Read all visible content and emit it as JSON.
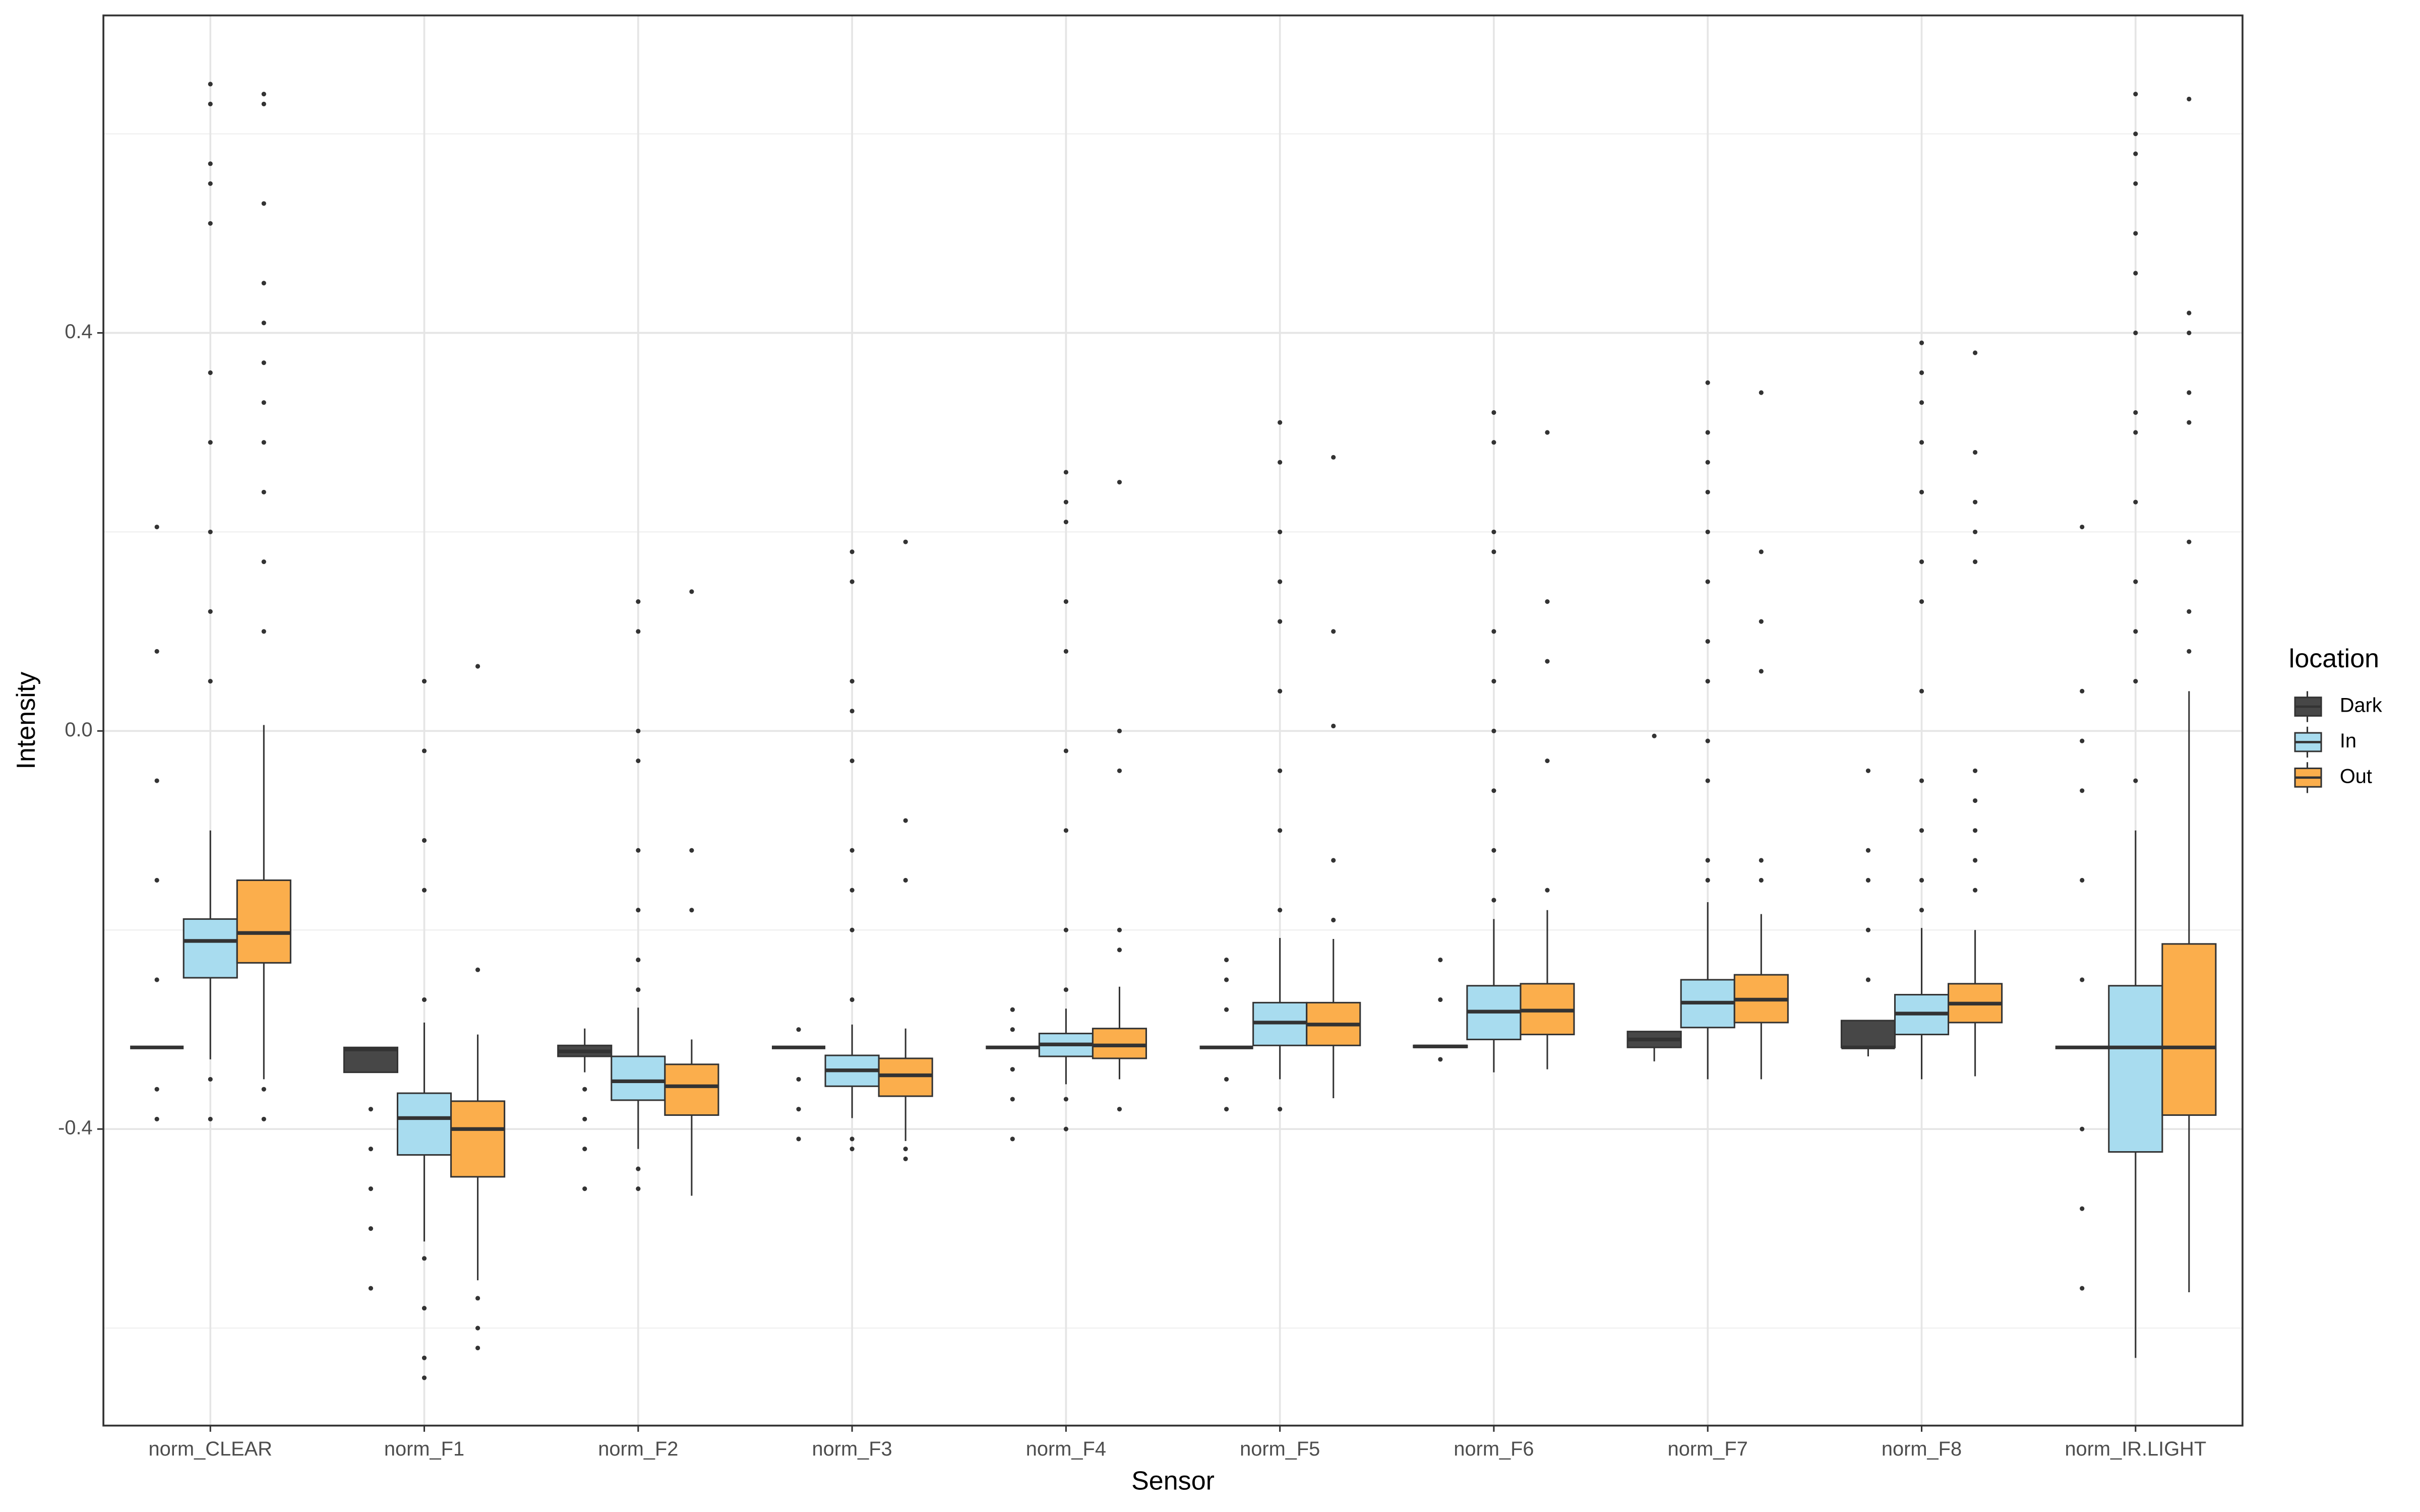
{
  "chart_data": {
    "type": "boxplot",
    "x_label": "Sensor",
    "y_label": "Intensity",
    "legend_title": "location",
    "legend_position": "right",
    "grid": true,
    "categories": [
      "norm_CLEAR",
      "norm_F1",
      "norm_F2",
      "norm_F3",
      "norm_F4",
      "norm_F5",
      "norm_F6",
      "norm_F7",
      "norm_F8",
      "norm_IR.LIGHT"
    ],
    "ylim": [
      -0.698,
      0.719
    ],
    "yticks": [
      {
        "value": -0.4,
        "label": "-0.4"
      },
      {
        "value": 0,
        "label": "0.0"
      },
      0.4
    ],
    "minor_yticks": [
      -0.6,
      -0.2,
      0.2,
      0.6
    ],
    "series": [
      {
        "name": "Dark",
        "color": "#474747",
        "boxes": [
          {
            "low": -0.318,
            "q1": -0.318,
            "median": -0.318,
            "q3": -0.318,
            "high": -0.318,
            "outliers": [
              0.205,
              0.08,
              -0.05,
              -0.15,
              -0.25,
              -0.36,
              -0.39
            ]
          },
          {
            "low": -0.343,
            "q1": -0.343,
            "median": -0.32,
            "q3": -0.318,
            "high": -0.318,
            "outliers": [
              -0.38,
              -0.42,
              -0.46,
              -0.5,
              -0.56
            ]
          },
          {
            "low": -0.343,
            "q1": -0.327,
            "median": -0.322,
            "q3": -0.316,
            "high": -0.299,
            "outliers": [
              -0.36,
              -0.39,
              -0.42,
              -0.46
            ]
          },
          {
            "low": -0.318,
            "q1": -0.318,
            "median": -0.318,
            "q3": -0.318,
            "high": -0.318,
            "outliers": [
              -0.3,
              -0.35,
              -0.38,
              -0.41
            ]
          },
          {
            "low": -0.318,
            "q1": -0.318,
            "median": -0.318,
            "q3": -0.318,
            "high": -0.318,
            "outliers": [
              -0.28,
              -0.3,
              -0.34,
              -0.37,
              -0.41
            ]
          },
          {
            "low": -0.318,
            "q1": -0.318,
            "median": -0.318,
            "q3": -0.318,
            "high": -0.318,
            "outliers": [
              -0.23,
              -0.25,
              -0.28,
              -0.35,
              -0.38
            ]
          },
          {
            "low": -0.318,
            "q1": -0.318,
            "median": -0.317,
            "q3": -0.316,
            "high": -0.316,
            "outliers": [
              -0.23,
              -0.27,
              -0.33
            ]
          },
          {
            "low": -0.332,
            "q1": -0.318,
            "median": -0.31,
            "q3": -0.302,
            "high": -0.302,
            "outliers": [
              -0.005
            ]
          },
          {
            "low": -0.327,
            "q1": -0.318,
            "median": -0.318,
            "q3": -0.291,
            "high": -0.291,
            "outliers": [
              -0.04,
              -0.12,
              -0.15,
              -0.2,
              -0.25
            ]
          },
          {
            "low": -0.318,
            "q1": -0.318,
            "median": -0.318,
            "q3": -0.318,
            "high": -0.318,
            "outliers": [
              0.205,
              0.04,
              -0.01,
              -0.06,
              -0.15,
              -0.25,
              -0.4,
              -0.48,
              -0.56
            ]
          }
        ]
      },
      {
        "name": "In",
        "color": "#a8dcef",
        "boxes": [
          {
            "low": -0.33,
            "q1": -0.248,
            "median": -0.211,
            "q3": -0.189,
            "high": -0.1,
            "outliers": [
              0.65,
              0.63,
              0.57,
              0.55,
              0.51,
              0.36,
              0.29,
              0.2,
              0.12,
              0.05,
              -0.35,
              -0.39
            ]
          },
          {
            "low": -0.513,
            "q1": -0.426,
            "median": -0.389,
            "q3": -0.364,
            "high": -0.293,
            "outliers": [
              0.05,
              -0.02,
              -0.11,
              -0.16,
              -0.27,
              -0.53,
              -0.58,
              -0.63,
              -0.65
            ]
          },
          {
            "low": -0.42,
            "q1": -0.371,
            "median": -0.352,
            "q3": -0.327,
            "high": -0.278,
            "outliers": [
              0.13,
              0.1,
              0.0,
              -0.03,
              -0.12,
              -0.18,
              -0.23,
              -0.26,
              -0.44,
              -0.46
            ]
          },
          {
            "low": -0.389,
            "q1": -0.357,
            "median": -0.341,
            "q3": -0.326,
            "high": -0.295,
            "outliers": [
              0.18,
              0.15,
              0.05,
              0.02,
              -0.03,
              -0.12,
              -0.16,
              -0.2,
              -0.27,
              -0.41,
              -0.42
            ]
          },
          {
            "low": -0.355,
            "q1": -0.327,
            "median": -0.315,
            "q3": -0.304,
            "high": -0.279,
            "outliers": [
              0.26,
              0.23,
              0.21,
              0.13,
              0.08,
              -0.02,
              -0.1,
              -0.2,
              -0.26,
              -0.37,
              -0.4
            ]
          },
          {
            "low": -0.35,
            "q1": -0.316,
            "median": -0.293,
            "q3": -0.273,
            "high": -0.208,
            "outliers": [
              0.31,
              0.27,
              0.2,
              0.15,
              0.11,
              0.04,
              -0.04,
              -0.1,
              -0.18,
              -0.38
            ]
          },
          {
            "low": -0.343,
            "q1": -0.31,
            "median": -0.282,
            "q3": -0.256,
            "high": -0.189,
            "outliers": [
              0.32,
              0.29,
              0.2,
              0.18,
              0.1,
              0.05,
              0.0,
              -0.06,
              -0.12,
              -0.17
            ]
          },
          {
            "low": -0.35,
            "q1": -0.298,
            "median": -0.273,
            "q3": -0.25,
            "high": -0.172,
            "outliers": [
              0.35,
              0.3,
              0.27,
              0.24,
              0.2,
              0.15,
              0.09,
              0.05,
              -0.01,
              -0.05,
              -0.13,
              -0.15
            ]
          },
          {
            "low": -0.35,
            "q1": -0.305,
            "median": -0.284,
            "q3": -0.265,
            "high": -0.198,
            "outliers": [
              0.39,
              0.36,
              0.33,
              0.29,
              0.24,
              0.17,
              0.13,
              0.04,
              -0.05,
              -0.1,
              -0.15,
              -0.18
            ]
          },
          {
            "low": -0.63,
            "q1": -0.423,
            "median": -0.318,
            "q3": -0.256,
            "high": -0.1,
            "outliers": [
              0.64,
              0.6,
              0.58,
              0.55,
              0.5,
              0.46,
              0.4,
              0.32,
              0.3,
              0.23,
              0.15,
              0.1,
              0.05,
              -0.05
            ]
          }
        ]
      },
      {
        "name": "Out",
        "color": "#fbae4c",
        "boxes": [
          {
            "low": -0.35,
            "q1": -0.233,
            "median": -0.203,
            "q3": -0.15,
            "high": 0.006,
            "outliers": [
              0.64,
              0.63,
              0.53,
              0.45,
              0.41,
              0.37,
              0.33,
              0.29,
              0.24,
              0.17,
              0.1,
              -0.36,
              -0.39
            ]
          },
          {
            "low": -0.552,
            "q1": -0.448,
            "median": -0.4,
            "q3": -0.372,
            "high": -0.305,
            "outliers": [
              0.065,
              -0.24,
              -0.57,
              -0.6,
              -0.62
            ]
          },
          {
            "low": -0.467,
            "q1": -0.386,
            "median": -0.357,
            "q3": -0.335,
            "high": -0.31,
            "outliers": [
              0.14,
              -0.12,
              -0.18
            ]
          },
          {
            "low": -0.412,
            "q1": -0.367,
            "median": -0.346,
            "q3": -0.329,
            "high": -0.299,
            "outliers": [
              0.19,
              -0.09,
              -0.15,
              -0.42,
              -0.43
            ]
          },
          {
            "low": -0.35,
            "q1": -0.329,
            "median": -0.316,
            "q3": -0.299,
            "high": -0.257,
            "outliers": [
              0.25,
              0.0,
              -0.04,
              -0.2,
              -0.22,
              -0.38
            ]
          },
          {
            "low": -0.369,
            "q1": -0.316,
            "median": -0.295,
            "q3": -0.273,
            "high": -0.209,
            "outliers": [
              0.275,
              0.1,
              0.005,
              -0.13,
              -0.19
            ]
          },
          {
            "low": -0.34,
            "q1": -0.305,
            "median": -0.281,
            "q3": -0.254,
            "high": -0.18,
            "outliers": [
              0.3,
              0.13,
              0.07,
              -0.03,
              -0.16
            ]
          },
          {
            "low": -0.35,
            "q1": -0.293,
            "median": -0.27,
            "q3": -0.245,
            "high": -0.184,
            "outliers": [
              0.34,
              0.18,
              0.11,
              0.06,
              -0.13,
              -0.15
            ]
          },
          {
            "low": -0.347,
            "q1": -0.293,
            "median": -0.274,
            "q3": -0.254,
            "high": -0.2,
            "outliers": [
              0.38,
              0.28,
              0.23,
              0.2,
              0.17,
              -0.04,
              -0.07,
              -0.1,
              -0.13,
              -0.16
            ]
          },
          {
            "low": -0.564,
            "q1": -0.386,
            "median": -0.318,
            "q3": -0.214,
            "high": 0.04,
            "outliers": [
              0.635,
              0.42,
              0.4,
              0.34,
              0.31,
              0.19,
              0.12,
              0.08
            ]
          }
        ]
      }
    ]
  }
}
